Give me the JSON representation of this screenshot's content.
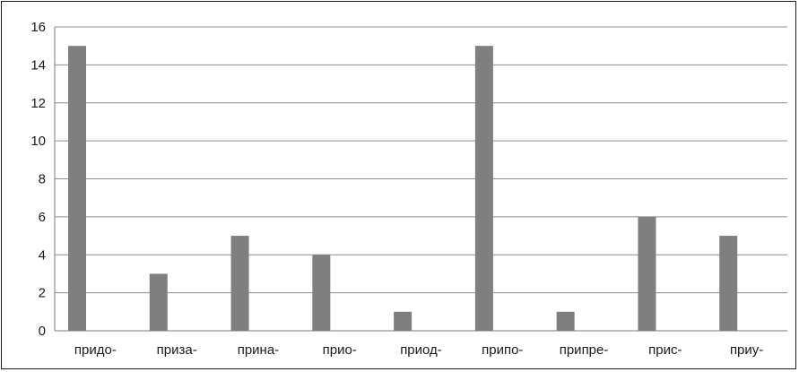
{
  "chart_data": {
    "type": "bar",
    "title": "",
    "xlabel": "",
    "ylabel": "",
    "categories": [
      "придо-",
      "приза-",
      "прина-",
      "прио-",
      "приод-",
      "припо-",
      "припре-",
      "прис-",
      "приу-"
    ],
    "values": [
      15,
      3,
      5,
      4,
      1,
      15,
      1,
      6,
      5
    ],
    "ylim": [
      0,
      16
    ],
    "yticks": [
      0,
      2,
      4,
      6,
      8,
      10,
      12,
      14,
      16
    ],
    "grid": true,
    "legend": "none",
    "bar_color": "#7f7f7f"
  }
}
